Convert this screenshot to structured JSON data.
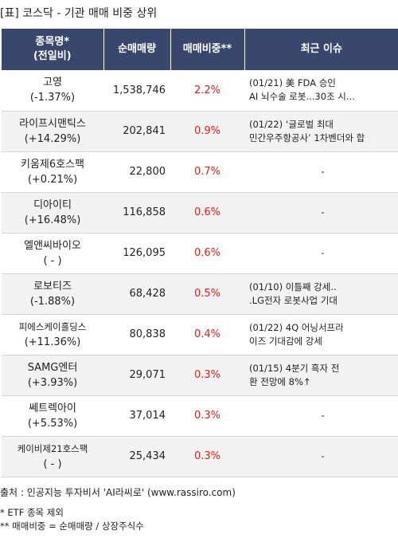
{
  "title": "[표] 코스닥 - 기관 매매 비중 상위",
  "header": {
    "col1_line1": "종목명*",
    "col1_line2": "(전일비)",
    "col2": "순매매량",
    "col3": "매매비중**",
    "col4": "최근 이슈"
  },
  "rows": [
    {
      "name": "고영",
      "change": "(-1.37%)",
      "volume": "1,538,746",
      "ratio": "2.2%",
      "issue1": "(01/21) 美 FDA 승인",
      "issue2": "AI 뇌수술 로봇...30조 시..."
    },
    {
      "name": "라이프시맨틱스",
      "change": "(+14.29%)",
      "volume": "202,841",
      "ratio": "0.9%",
      "issue1": "(01/22) ‘글로벌 최대",
      "issue2": "민간우주항공사’ 1차벤더와 합"
    },
    {
      "name": "키움제6호스팩",
      "change": "(+0.21%)",
      "volume": "22,800",
      "ratio": "0.7%",
      "issue1": "-",
      "issue2": ""
    },
    {
      "name": "디아이티",
      "change": "(+16.48%)",
      "volume": "116,858",
      "ratio": "0.6%",
      "issue1": "-",
      "issue2": ""
    },
    {
      "name": "엘앤씨바이오",
      "change": "( - )",
      "volume": "126,095",
      "ratio": "0.6%",
      "issue1": "-",
      "issue2": ""
    },
    {
      "name": "로보티즈",
      "change": "(-1.88%)",
      "volume": "68,428",
      "ratio": "0.5%",
      "issue1": "(01/10) 이틀째 강세..",
      "issue2": ".LG전자 로봇사업 기대"
    },
    {
      "name": "피에스케이홀딩스",
      "change": "(+11.36%)",
      "volume": "80,838",
      "ratio": "0.4%",
      "issue1": "(01/22) 4Q 어닝서프라",
      "issue2": "이즈 기대감에 강세"
    },
    {
      "name": "SAMG엔터",
      "change": "(+3.93%)",
      "volume": "29,071",
      "ratio": "0.3%",
      "issue1": "(01/15) 4분기 흑자 전",
      "issue2": "환 전망에 8%↑"
    },
    {
      "name": "쎄트렉아이",
      "change": "(+5.53%)",
      "volume": "37,014",
      "ratio": "0.3%",
      "issue1": "-",
      "issue2": ""
    },
    {
      "name": "케이비제21호스팩",
      "change": "( - )",
      "volume": "25,434",
      "ratio": "0.3%",
      "issue1": "-",
      "issue2": ""
    }
  ],
  "source": "출처 : 인공지능 투자비서 'AI라씨로' (www.rassiro.com)",
  "note1": "* ETF 종목 제외",
  "note2": "** 매매비중 = 순매매량 / 상장주식수"
}
